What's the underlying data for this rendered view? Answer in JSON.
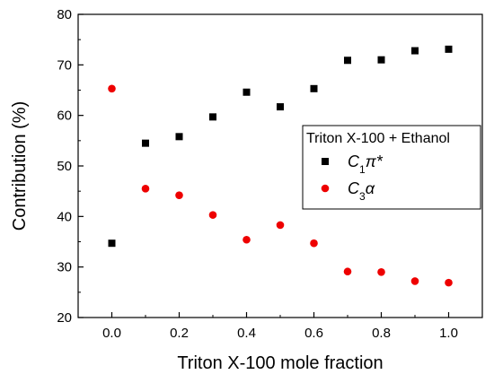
{
  "chart_data": {
    "type": "scatter",
    "title": "",
    "xlabel": "Triton X-100 mole fraction",
    "ylabel": "Contribution (%)",
    "xlim": [
      -0.1,
      1.1
    ],
    "ylim": [
      20,
      80
    ],
    "xticks": [
      "0.0",
      "0.2",
      "0.4",
      "0.6",
      "0.8",
      "1.0"
    ],
    "yticks": [
      "20",
      "30",
      "40",
      "50",
      "60",
      "70",
      "80"
    ],
    "grid": false,
    "legend": {
      "title": "Triton X-100 + Ethanol",
      "placement": "right"
    },
    "series": [
      {
        "name": "C1π*",
        "marker": "square",
        "color": "#000000",
        "x": [
          0.0,
          0.1,
          0.2,
          0.3,
          0.4,
          0.5,
          0.6,
          0.7,
          0.8,
          0.9,
          1.0
        ],
        "y": [
          34.7,
          54.5,
          55.8,
          59.7,
          64.6,
          61.7,
          65.3,
          70.9,
          71.0,
          72.8,
          73.1
        ]
      },
      {
        "name": "C3α",
        "marker": "circle",
        "color": "#ee0000",
        "x": [
          0.0,
          0.1,
          0.2,
          0.3,
          0.4,
          0.5,
          0.6,
          0.7,
          0.8,
          0.9,
          1.0
        ],
        "y": [
          65.3,
          45.5,
          44.2,
          40.3,
          35.4,
          38.3,
          34.7,
          29.1,
          29.0,
          27.2,
          26.9
        ]
      }
    ]
  }
}
